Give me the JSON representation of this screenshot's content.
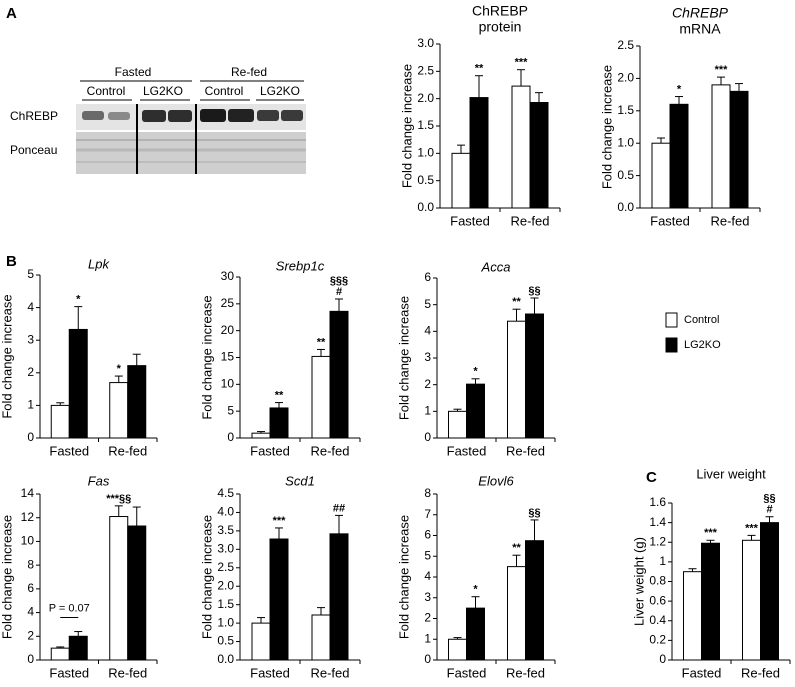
{
  "figure": {
    "panels": [
      "A",
      "B",
      "C"
    ],
    "blot": {
      "groups": [
        "Fasted",
        "Re-fed"
      ],
      "lanes": [
        "Control",
        "LG2KO",
        "Control",
        "LG2KO"
      ],
      "rows": [
        "ChREBP",
        "Ponceau"
      ]
    }
  },
  "chart_data": [
    {
      "type": "bar",
      "title": "ChREBP",
      "subtitle": "protein",
      "y_label": "Fold change increase",
      "categories": [
        "Fasted",
        "Re-fed"
      ],
      "ylim": [
        0,
        3.0
      ],
      "yticks": [
        {
          "value": 0,
          "label": "0.0"
        },
        {
          "value": 0.5,
          "label": "0.5"
        },
        {
          "value": 1,
          "label": "1.0"
        },
        {
          "value": 1.5,
          "label": "1.5"
        },
        {
          "value": 2,
          "label": "2.0"
        },
        {
          "value": 2.5,
          "label": "2.5"
        },
        {
          "value": 3,
          "label": "3.0"
        }
      ],
      "series": [
        {
          "name": "Control",
          "color": "#ffffff",
          "values": [
            1.0,
            2.23
          ],
          "errors": [
            0.15,
            0.3
          ],
          "annotations": [
            null,
            [
              "***"
            ]
          ]
        },
        {
          "name": "LG2KO",
          "color": "#000000",
          "values": [
            2.02,
            1.93
          ],
          "errors": [
            0.4,
            0.18
          ],
          "annotations": [
            [
              "**"
            ],
            null
          ]
        }
      ]
    },
    {
      "type": "bar",
      "title": "ChREBP",
      "subtitle": "mRNA",
      "title_style": "italic",
      "y_label": "Fold change increase",
      "categories": [
        "Fasted",
        "Re-fed"
      ],
      "ylim": [
        0,
        2.5
      ],
      "yticks": [
        {
          "value": 0,
          "label": "0.0"
        },
        {
          "value": 0.5,
          "label": "0.5"
        },
        {
          "value": 1,
          "label": "1.0"
        },
        {
          "value": 1.5,
          "label": "1.5"
        },
        {
          "value": 2,
          "label": "2.0"
        },
        {
          "value": 2.5,
          "label": "2.5"
        }
      ],
      "series": [
        {
          "name": "Control",
          "color": "#ffffff",
          "values": [
            1.0,
            1.9
          ],
          "errors": [
            0.08,
            0.12
          ],
          "annotations": [
            null,
            [
              "***"
            ]
          ]
        },
        {
          "name": "LG2KO",
          "color": "#000000",
          "values": [
            1.6,
            1.8
          ],
          "errors": [
            0.12,
            0.12
          ],
          "annotations": [
            [
              "*"
            ],
            null
          ]
        }
      ]
    },
    {
      "type": "bar",
      "title": "Lpk",
      "title_style": "italic",
      "y_label": "Fold change increase",
      "categories": [
        "Fasted",
        "Re-fed"
      ],
      "ylim": [
        0,
        5
      ],
      "yticks": [
        0,
        1,
        2,
        3,
        4,
        5
      ],
      "series": [
        {
          "name": "Control",
          "color": "#ffffff",
          "values": [
            1.0,
            1.7
          ],
          "errors": [
            0.08,
            0.2
          ],
          "annotations": [
            null,
            [
              "*"
            ]
          ]
        },
        {
          "name": "LG2KO",
          "color": "#000000",
          "values": [
            3.33,
            2.22
          ],
          "errors": [
            0.7,
            0.35
          ],
          "annotations": [
            [
              "*"
            ],
            null
          ]
        }
      ]
    },
    {
      "type": "bar",
      "title": "Srebp1c",
      "title_style": "italic",
      "y_label": "Fold change increase",
      "categories": [
        "Fasted",
        "Re-fed"
      ],
      "ylim": [
        0,
        30
      ],
      "yticks": [
        0,
        5,
        10,
        15,
        20,
        25,
        30
      ],
      "series": [
        {
          "name": "Control",
          "color": "#ffffff",
          "values": [
            0.9,
            15.2
          ],
          "errors": [
            0.3,
            1.3
          ],
          "annotations": [
            null,
            [
              "**"
            ]
          ]
        },
        {
          "name": "LG2KO",
          "color": "#000000",
          "values": [
            5.6,
            23.6
          ],
          "errors": [
            1.0,
            2.3
          ],
          "annotations": [
            [
              "**"
            ],
            [
              "§§§",
              "#"
            ]
          ]
        }
      ]
    },
    {
      "type": "bar",
      "title": "Acca",
      "title_style": "italic",
      "y_label": "Fold change increase",
      "categories": [
        "Fasted",
        "Re-fed"
      ],
      "ylim": [
        0,
        6
      ],
      "yticks": [
        0,
        1,
        2,
        3,
        4,
        5,
        6
      ],
      "series": [
        {
          "name": "Control",
          "color": "#ffffff",
          "values": [
            1.0,
            4.38
          ],
          "errors": [
            0.08,
            0.45
          ],
          "annotations": [
            null,
            [
              "**"
            ]
          ]
        },
        {
          "name": "LG2KO",
          "color": "#000000",
          "values": [
            2.02,
            4.65
          ],
          "errors": [
            0.2,
            0.6
          ],
          "annotations": [
            [
              "*"
            ],
            [
              "§§"
            ]
          ]
        }
      ]
    },
    {
      "type": "bar",
      "title": "Fas",
      "title_style": "italic",
      "y_label": "Fold change increase",
      "note": "P = 0.07",
      "categories": [
        "Fasted",
        "Re-fed"
      ],
      "ylim": [
        0,
        14
      ],
      "yticks": [
        0,
        2,
        4,
        6,
        8,
        10,
        12,
        14
      ],
      "series": [
        {
          "name": "Control",
          "color": "#ffffff",
          "values": [
            1.0,
            12.1
          ],
          "errors": [
            0.1,
            0.9
          ],
          "annotations": [
            null,
            [
              "***§§"
            ]
          ]
        },
        {
          "name": "LG2KO",
          "color": "#000000",
          "values": [
            2.0,
            11.3
          ],
          "errors": [
            0.4,
            1.6
          ],
          "annotations": [
            null,
            null
          ]
        }
      ]
    },
    {
      "type": "bar",
      "title": "Scd1",
      "title_style": "italic",
      "y_label": "Fold change increase",
      "categories": [
        "Fasted",
        "Re-fed"
      ],
      "ylim": [
        0,
        4.5
      ],
      "yticks": [
        {
          "value": 0,
          "label": "0.0"
        },
        {
          "value": 0.5,
          "label": "0.5"
        },
        {
          "value": 1,
          "label": "1.0"
        },
        {
          "value": 1.5,
          "label": "1.5"
        },
        {
          "value": 2,
          "label": "2.0"
        },
        {
          "value": 2.5,
          "label": "2.5"
        },
        {
          "value": 3,
          "label": "3.0"
        },
        {
          "value": 3.5,
          "label": "3.5"
        },
        {
          "value": 4,
          "label": "4.0"
        },
        {
          "value": 4.5,
          "label": "4.5"
        }
      ],
      "series": [
        {
          "name": "Control",
          "color": "#ffffff",
          "values": [
            1.0,
            1.22
          ],
          "errors": [
            0.15,
            0.2
          ],
          "annotations": [
            null,
            null
          ]
        },
        {
          "name": "LG2KO",
          "color": "#000000",
          "values": [
            3.28,
            3.42
          ],
          "errors": [
            0.3,
            0.5
          ],
          "annotations": [
            [
              "***"
            ],
            [
              "##"
            ]
          ]
        }
      ]
    },
    {
      "type": "bar",
      "title": "Elovl6",
      "title_style": "italic",
      "y_label": "Fold change increase",
      "categories": [
        "Fasted",
        "Re-fed"
      ],
      "ylim": [
        0,
        8
      ],
      "yticks": [
        0,
        1,
        2,
        3,
        4,
        5,
        6,
        7,
        8
      ],
      "series": [
        {
          "name": "Control",
          "color": "#ffffff",
          "values": [
            1.0,
            4.5
          ],
          "errors": [
            0.08,
            0.55
          ],
          "annotations": [
            null,
            [
              "**"
            ]
          ]
        },
        {
          "name": "LG2KO",
          "color": "#000000",
          "values": [
            2.5,
            5.75
          ],
          "errors": [
            0.55,
            1.0
          ],
          "annotations": [
            [
              "*"
            ],
            [
              "§§"
            ]
          ]
        }
      ]
    },
    {
      "type": "bar",
      "title": "Liver weight",
      "y_label": "Liver weight (g)",
      "categories": [
        "Fasted",
        "Re-fed"
      ],
      "ylim": [
        0,
        1.6
      ],
      "yticks": [
        0,
        0.2,
        0.4,
        0.6,
        0.8,
        1,
        1.2,
        1.4,
        1.6
      ],
      "series": [
        {
          "name": "Control",
          "color": "#ffffff",
          "values": [
            0.9,
            1.22
          ],
          "errors": [
            0.03,
            0.05
          ],
          "annotations": [
            null,
            [
              "***"
            ]
          ]
        },
        {
          "name": "LG2KO",
          "color": "#000000",
          "values": [
            1.19,
            1.4
          ],
          "errors": [
            0.03,
            0.06
          ],
          "annotations": [
            [
              "***"
            ],
            [
              "§§",
              "#"
            ]
          ]
        }
      ]
    }
  ]
}
